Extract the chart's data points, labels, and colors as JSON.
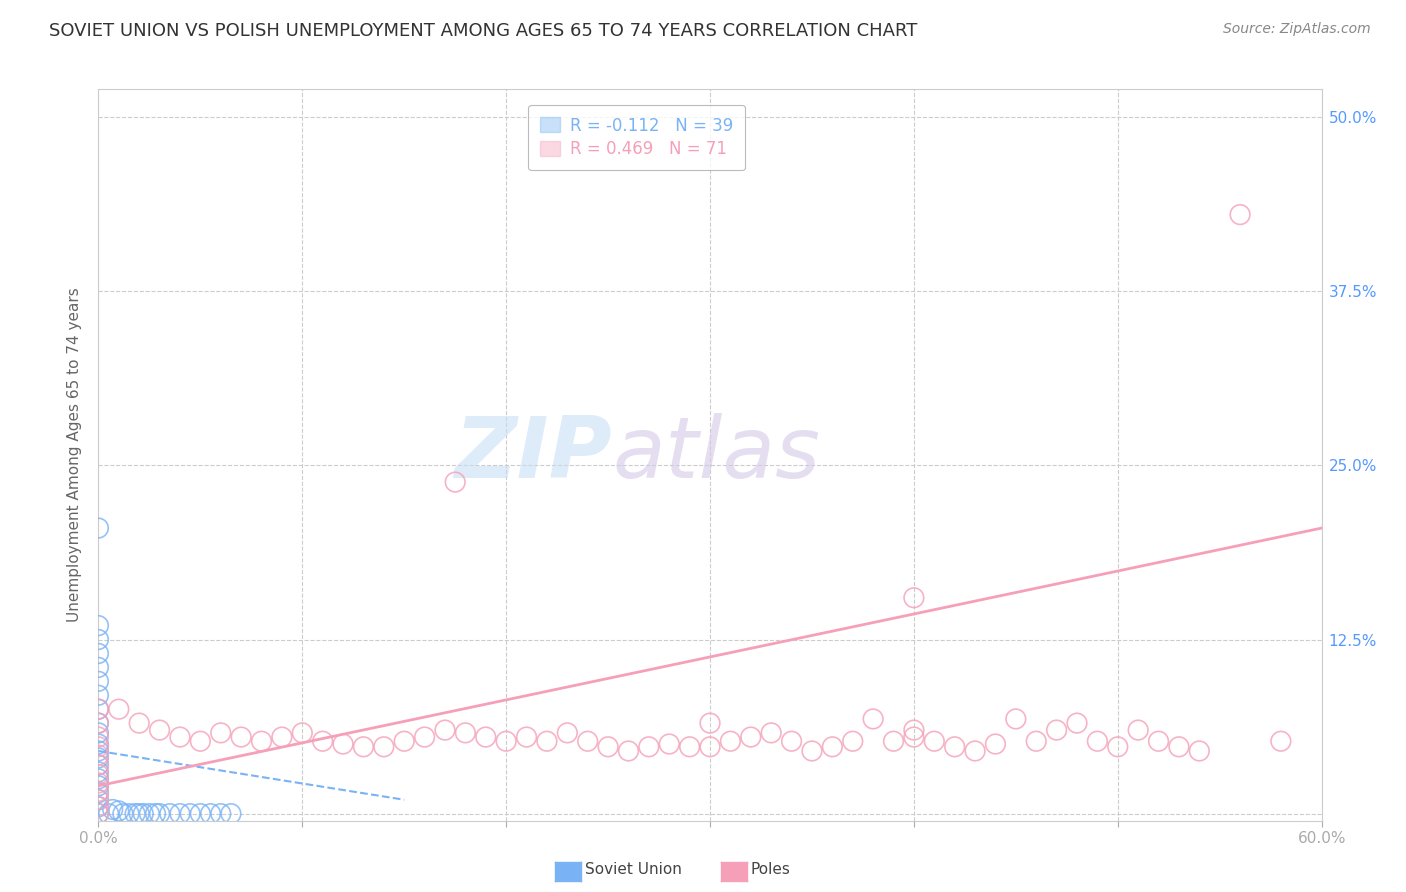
{
  "title": "SOVIET UNION VS POLISH UNEMPLOYMENT AMONG AGES 65 TO 74 YEARS CORRELATION CHART",
  "source": "Source: ZipAtlas.com",
  "ylabel": "Unemployment Among Ages 65 to 74 years",
  "xlim": [
    0.0,
    0.6
  ],
  "ylim": [
    -0.005,
    0.52
  ],
  "xticks": [
    0.0,
    0.1,
    0.2,
    0.3,
    0.4,
    0.5,
    0.6
  ],
  "xticklabels": [
    "0.0%",
    "",
    "",
    "",
    "",
    "",
    "60.0%"
  ],
  "yticks": [
    0.0,
    0.125,
    0.25,
    0.375,
    0.5
  ],
  "yticklabels": [
    "",
    "12.5%",
    "25.0%",
    "37.5%",
    "50.0%"
  ],
  "legend1_label": "R = -0.112   N = 39",
  "legend2_label": "R = 0.469   N = 71",
  "soviet_color": "#7ab3f5",
  "poles_color": "#f5a0b8",
  "watermark_zip": "ZIP",
  "watermark_atlas": "atlas",
  "grid_color": "#cccccc",
  "title_color": "#333333",
  "axis_label_color": "#666666",
  "tick_color": "#5599ff",
  "soviet_points": [
    [
      0.0,
      0.205
    ],
    [
      0.0,
      0.135
    ],
    [
      0.0,
      0.125
    ],
    [
      0.0,
      0.115
    ],
    [
      0.0,
      0.105
    ],
    [
      0.0,
      0.095
    ],
    [
      0.0,
      0.085
    ],
    [
      0.0,
      0.075
    ],
    [
      0.0,
      0.065
    ],
    [
      0.0,
      0.058
    ],
    [
      0.0,
      0.05
    ],
    [
      0.0,
      0.045
    ],
    [
      0.0,
      0.04
    ],
    [
      0.0,
      0.035
    ],
    [
      0.0,
      0.03
    ],
    [
      0.0,
      0.025
    ],
    [
      0.0,
      0.02
    ],
    [
      0.0,
      0.015
    ],
    [
      0.0,
      0.01
    ],
    [
      0.0,
      0.005
    ],
    [
      0.0,
      0.0
    ],
    [
      0.005,
      0.0
    ],
    [
      0.007,
      0.003
    ],
    [
      0.01,
      0.002
    ],
    [
      0.012,
      0.0
    ],
    [
      0.015,
      0.0
    ],
    [
      0.018,
      0.0
    ],
    [
      0.02,
      0.0
    ],
    [
      0.022,
      0.0
    ],
    [
      0.025,
      0.0
    ],
    [
      0.028,
      0.0
    ],
    [
      0.03,
      0.0
    ],
    [
      0.035,
      0.0
    ],
    [
      0.04,
      0.0
    ],
    [
      0.045,
      0.0
    ],
    [
      0.05,
      0.0
    ],
    [
      0.055,
      0.0
    ],
    [
      0.06,
      0.0
    ],
    [
      0.065,
      0.0
    ]
  ],
  "poles_points": [
    [
      0.0,
      0.075
    ],
    [
      0.0,
      0.065
    ],
    [
      0.0,
      0.055
    ],
    [
      0.0,
      0.048
    ],
    [
      0.0,
      0.042
    ],
    [
      0.0,
      0.035
    ],
    [
      0.0,
      0.028
    ],
    [
      0.0,
      0.022
    ],
    [
      0.0,
      0.016
    ],
    [
      0.0,
      0.01
    ],
    [
      0.0,
      0.005
    ],
    [
      0.0,
      0.0
    ],
    [
      0.01,
      0.075
    ],
    [
      0.02,
      0.065
    ],
    [
      0.03,
      0.06
    ],
    [
      0.04,
      0.055
    ],
    [
      0.05,
      0.052
    ],
    [
      0.06,
      0.058
    ],
    [
      0.07,
      0.055
    ],
    [
      0.08,
      0.052
    ],
    [
      0.09,
      0.055
    ],
    [
      0.1,
      0.058
    ],
    [
      0.11,
      0.052
    ],
    [
      0.12,
      0.05
    ],
    [
      0.13,
      0.048
    ],
    [
      0.14,
      0.048
    ],
    [
      0.15,
      0.052
    ],
    [
      0.16,
      0.055
    ],
    [
      0.17,
      0.06
    ],
    [
      0.175,
      0.238
    ],
    [
      0.18,
      0.058
    ],
    [
      0.19,
      0.055
    ],
    [
      0.2,
      0.052
    ],
    [
      0.21,
      0.055
    ],
    [
      0.22,
      0.052
    ],
    [
      0.23,
      0.058
    ],
    [
      0.24,
      0.052
    ],
    [
      0.25,
      0.048
    ],
    [
      0.26,
      0.045
    ],
    [
      0.27,
      0.048
    ],
    [
      0.28,
      0.05
    ],
    [
      0.29,
      0.048
    ],
    [
      0.3,
      0.065
    ],
    [
      0.3,
      0.048
    ],
    [
      0.31,
      0.052
    ],
    [
      0.32,
      0.055
    ],
    [
      0.33,
      0.058
    ],
    [
      0.34,
      0.052
    ],
    [
      0.35,
      0.045
    ],
    [
      0.36,
      0.048
    ],
    [
      0.37,
      0.052
    ],
    [
      0.38,
      0.068
    ],
    [
      0.39,
      0.052
    ],
    [
      0.4,
      0.155
    ],
    [
      0.4,
      0.06
    ],
    [
      0.4,
      0.055
    ],
    [
      0.41,
      0.052
    ],
    [
      0.42,
      0.048
    ],
    [
      0.43,
      0.045
    ],
    [
      0.44,
      0.05
    ],
    [
      0.45,
      0.068
    ],
    [
      0.46,
      0.052
    ],
    [
      0.47,
      0.06
    ],
    [
      0.48,
      0.065
    ],
    [
      0.49,
      0.052
    ],
    [
      0.5,
      0.048
    ],
    [
      0.51,
      0.06
    ],
    [
      0.52,
      0.052
    ],
    [
      0.53,
      0.048
    ],
    [
      0.54,
      0.045
    ],
    [
      0.56,
      0.43
    ],
    [
      0.58,
      0.052
    ]
  ],
  "soviet_line_x": [
    0.0,
    0.15
  ],
  "soviet_line_y": [
    0.045,
    0.01
  ],
  "poles_line_x": [
    0.0,
    0.6
  ],
  "poles_line_y": [
    0.02,
    0.205
  ],
  "bottom_legend_soviet": "Soviet Union",
  "bottom_legend_poles": "Poles"
}
